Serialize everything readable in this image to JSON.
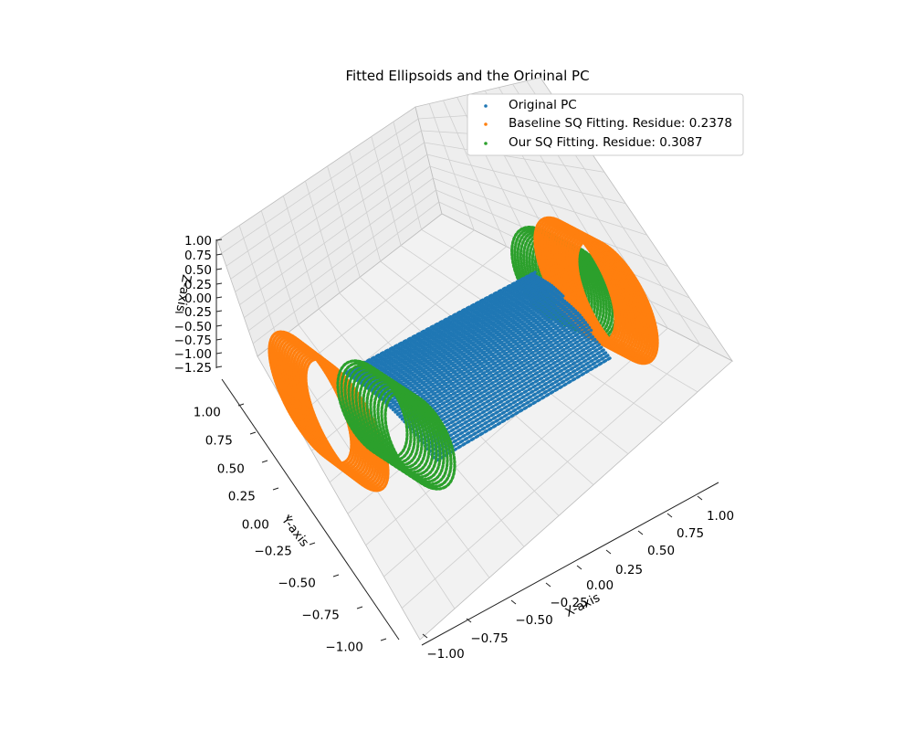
{
  "chart_data": {
    "type": "scatter",
    "projection": "3d",
    "title": "Fitted Ellipsoids and the Original PC",
    "xlabel": "X-axis",
    "ylabel": "Y-axis",
    "zlabel": "Z-axis",
    "x_ticks": [
      "−1.00",
      "−0.75",
      "−0.50",
      "−0.25",
      "0.00",
      "0.25",
      "0.50",
      "0.75",
      "1.00"
    ],
    "y_ticks": [
      "−1.00",
      "−0.75",
      "−0.50",
      "−0.25",
      "0.00",
      "0.25",
      "0.50",
      "0.75",
      "1.00"
    ],
    "z_ticks": [
      "−1.25",
      "−1.00",
      "−0.75",
      "−0.50",
      "−0.25",
      "0.00",
      "0.25",
      "0.50",
      "0.75",
      "1.00"
    ],
    "grid": true,
    "legend_position": "upper right",
    "series": [
      {
        "name": "Original PC",
        "color": "#1f77b4",
        "shape": "cylinder"
      },
      {
        "name": "Baseline SQ Fitting. Residue: 0.2378",
        "color": "#ff7f0e",
        "shape": "rings at both ends"
      },
      {
        "name": "Our SQ Fitting. Residue: 0.3087",
        "color": "#2ca02c",
        "shape": "rings at both ends"
      }
    ]
  }
}
